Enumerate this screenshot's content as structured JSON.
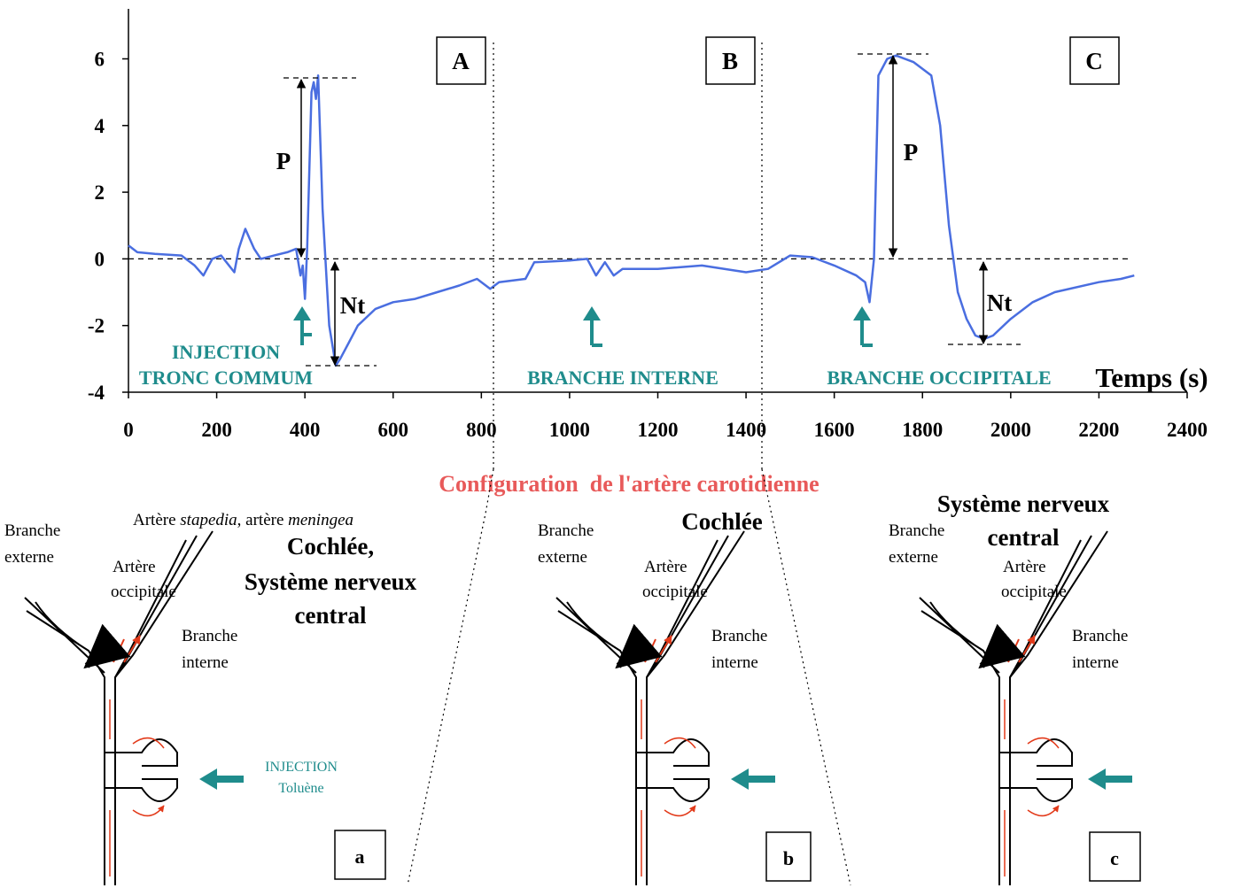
{
  "chart_data": {
    "type": "line",
    "x_label": "Temps (s)",
    "xlim": [
      0,
      2400
    ],
    "xticks": [
      0,
      200,
      400,
      600,
      800,
      1000,
      1200,
      1400,
      1600,
      1800,
      2000,
      2200,
      2400
    ],
    "ylim": [
      -4,
      7.5
    ],
    "yticks": [
      -4,
      -2,
      0,
      2,
      4,
      6
    ],
    "series": [
      {
        "color": "#4a6ee0",
        "x": [
          0,
          20,
          60,
          120,
          150,
          170,
          190,
          210,
          240,
          250,
          265,
          285,
          300,
          330,
          360,
          380,
          390,
          395,
          400,
          405,
          415,
          420,
          425,
          430,
          440,
          455,
          470,
          480,
          500,
          520,
          560,
          600,
          650,
          700,
          750,
          790,
          820,
          840,
          900,
          920,
          1000,
          1040,
          1060,
          1080,
          1100,
          1120,
          1200,
          1300,
          1400,
          1450,
          1500,
          1550,
          1600,
          1650,
          1670,
          1680,
          1690,
          1700,
          1720,
          1740,
          1780,
          1820,
          1840,
          1860,
          1880,
          1900,
          1920,
          1940,
          1960,
          2000,
          2050,
          2100,
          2200,
          2250,
          2280
        ],
        "values": [
          0.4,
          0.2,
          0.15,
          0.1,
          -0.2,
          -0.5,
          0,
          0.1,
          -0.4,
          0.3,
          0.9,
          0.3,
          0,
          0.1,
          0.2,
          0.3,
          -0.5,
          -0.2,
          -1.2,
          0.3,
          5.0,
          5.3,
          4.8,
          5.5,
          1.5,
          -2,
          -3.2,
          -3.0,
          -2.5,
          -2.0,
          -1.5,
          -1.3,
          -1.2,
          -1.0,
          -0.8,
          -0.6,
          -0.9,
          -0.7,
          -0.6,
          -0.1,
          -0.05,
          0,
          -0.5,
          -0.1,
          -0.5,
          -0.3,
          -0.3,
          -0.2,
          -0.4,
          -0.3,
          0.1,
          0.05,
          -0.2,
          -0.5,
          -0.7,
          -1.3,
          0,
          5.5,
          6.0,
          6.1,
          5.9,
          5.5,
          4,
          1,
          -1,
          -1.8,
          -2.3,
          -2.4,
          -2.3,
          -1.8,
          -1.3,
          -1.0,
          -0.7,
          -0.6,
          -0.5
        ]
      }
    ],
    "annotations": {
      "phases": [
        "A",
        "B",
        "C"
      ],
      "peak": "P",
      "trough": "Nt",
      "injection": "INJECTION",
      "sites": [
        "TRONC COMMUM",
        "BRANCHE INTERNE",
        "BRANCHE OCCIPITALE"
      ]
    }
  },
  "figure": {
    "caption": "Configuration  de l'artère carotidienne",
    "panels": [
      {
        "label": "a",
        "external": [
          "Branche",
          "externe"
        ],
        "vessels": [
          "Artère ",
          "stapedia",
          ", artère ",
          "meningea"
        ],
        "occipital": [
          "Artère",
          "occipitale"
        ],
        "target": [
          "Cochlée,",
          "Système nerveux",
          "central"
        ],
        "internal": [
          "Branche",
          "interne"
        ],
        "injection": [
          "INJECTION",
          "Toluène"
        ]
      },
      {
        "label": "b",
        "external": [
          "Branche",
          "externe"
        ],
        "target": [
          "Cochlée"
        ],
        "occipital": [
          "Artère",
          "occipitale"
        ],
        "internal": [
          "Branche",
          "interne"
        ]
      },
      {
        "label": "c",
        "target": [
          "Système nerveux",
          "central"
        ],
        "external": [
          "Branche",
          "externe"
        ],
        "occipital": [
          "Artère",
          "occipitale"
        ],
        "internal": [
          "Branche",
          "interne"
        ]
      }
    ]
  }
}
